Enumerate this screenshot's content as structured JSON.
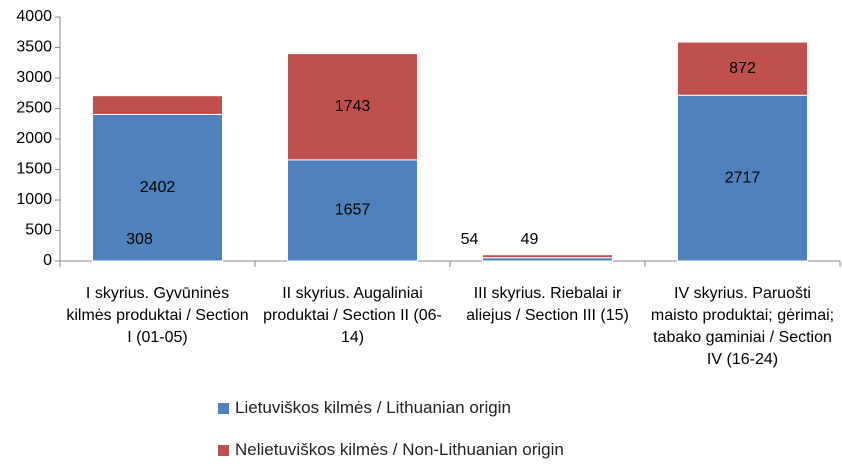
{
  "chart_data": {
    "type": "stacked_bar",
    "categories": [
      "I skyrius. Gyvūninės kilmės produktai / Section I (01-05)",
      "II skyrius. Augaliniai produktai / Section II (06-14)",
      "III skyrius. Riebalai ir aliejus / Section III (15)",
      "IV skyrius. Paruošti maisto produktai; gėrimai; tabako gaminiai / Section IV (16-24)"
    ],
    "series": [
      {
        "name": "Lietuviškos kilmės / Lithuanian origin",
        "color": "#4f81bd",
        "values": [
          2402,
          1657,
          54,
          2717
        ]
      },
      {
        "name": "Nelietuviškos kilmės / Non-Lithuanian origin",
        "color": "#c0504d",
        "values": [
          308,
          1743,
          49,
          872
        ]
      }
    ],
    "ylim": [
      0,
      4000
    ],
    "yticks": [
      0,
      500,
      1000,
      1500,
      2000,
      2500,
      3000,
      3500,
      4000
    ],
    "grid": false
  }
}
